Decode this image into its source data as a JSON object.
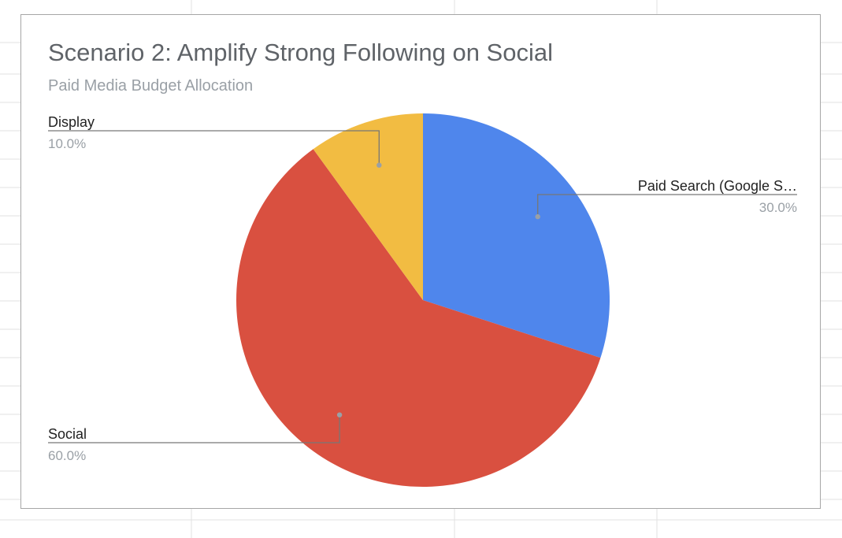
{
  "chart_data": {
    "type": "pie",
    "title": "Scenario 2: Amplify Strong Following on Social",
    "subtitle": "Paid Media Budget Allocation",
    "slices": [
      {
        "label": "Paid Search (Google S…",
        "value": 30.0,
        "percent_label": "30.0%",
        "color": "#4f86ec"
      },
      {
        "label": "Social",
        "value": 60.0,
        "percent_label": "60.0%",
        "color": "#d95040"
      },
      {
        "label": "Display",
        "value": 10.0,
        "percent_label": "10.0%",
        "color": "#f2bc42"
      }
    ],
    "start_angle": "12 o'clock",
    "direction": "clockwise",
    "legend": "none",
    "labels": "outside with leader lines"
  }
}
